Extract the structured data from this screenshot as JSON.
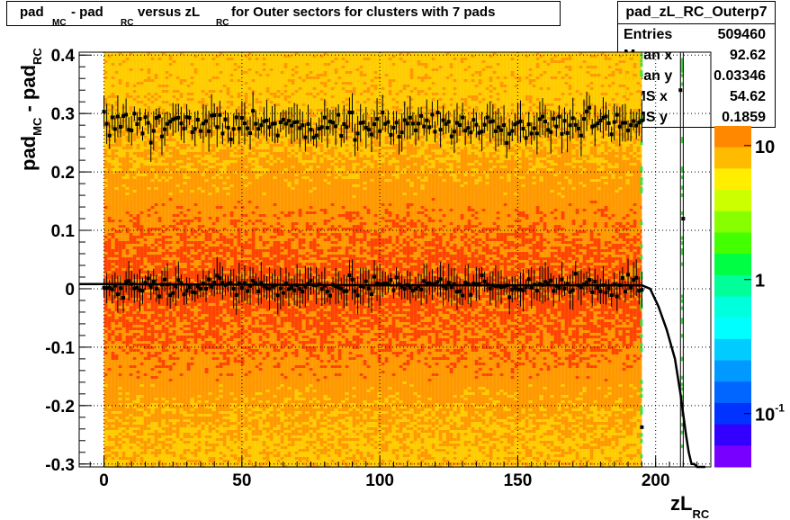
{
  "title": {
    "p1": "pad",
    "p1_sub": "MC",
    "p2": " - pad",
    "p2_sub": "RC",
    "p3": " versus zL",
    "p3_sub": "RC",
    "p4": " for Outer sectors for clusters with 7 pads"
  },
  "stats": {
    "name": "pad_zL_RC_Outerp7",
    "rows": [
      {
        "label": "Entries",
        "value": "509460"
      },
      {
        "label": "Mean x",
        "value": "92.62"
      },
      {
        "label": "Mean y",
        "value": "0.03346"
      },
      {
        "label": "RMS x",
        "value": "54.62"
      },
      {
        "label": "RMS y",
        "value": "0.1859"
      }
    ]
  },
  "colors": {
    "heat_low": "#ffcc00",
    "heat_mid": "#ff9900",
    "heat_high": "#ff4400",
    "markers": "#000000",
    "fit_line": "#000000"
  },
  "chart_data": {
    "type": "heatmap",
    "overlays": [
      "profile-markers",
      "fit-curve"
    ],
    "xlabel": "zL",
    "xlabel_sub": "RC",
    "ylabel": "pad",
    "ylabel_sub1": "MC",
    "ylabel_mid": " - pad",
    "ylabel_sub2": "RC",
    "xlim": [
      -9,
      220
    ],
    "ylim": [
      -0.305,
      0.405
    ],
    "x_ticks": [
      0,
      50,
      100,
      150,
      200
    ],
    "x_tick_labels": [
      "0",
      "50",
      "100",
      "150",
      "200"
    ],
    "y_ticks": [
      -0.3,
      -0.2,
      -0.1,
      0,
      0.1,
      0.2,
      0.3,
      0.4
    ],
    "y_tick_labels": [
      "-0.3",
      "-0.2",
      "-0.1",
      "0",
      "0.1",
      "0.2",
      "0.3",
      "0.4"
    ],
    "grid": true,
    "log_z": true,
    "z_ticks": [
      0.1,
      1,
      10
    ],
    "z_labels": [
      {
        "base": "10",
        "exp": "-1"
      },
      {
        "base": "1",
        "exp": ""
      },
      {
        "base": "10",
        "exp": ""
      }
    ],
    "heatmap_x_range": [
      0,
      195
    ],
    "profile_upper": {
      "x_range": [
        0,
        195
      ],
      "mean": 0.28,
      "spread": 0.02
    },
    "profile_lower": {
      "x_range": [
        0,
        195
      ],
      "mean": 0.005,
      "spread": 0.015
    },
    "fit": {
      "x": [
        -9,
        0,
        50,
        100,
        150,
        190,
        195,
        198,
        201,
        204,
        207,
        209,
        211,
        212,
        213,
        214,
        215,
        216,
        218
      ],
      "y": [
        0.008,
        0.008,
        0.007,
        0.006,
        0.006,
        0.006,
        0.006,
        0.0,
        -0.03,
        -0.07,
        -0.12,
        -0.18,
        -0.25,
        -0.28,
        -0.3,
        -0.3,
        -0.305,
        -0.305,
        -0.305
      ]
    },
    "isolated_markers": [
      {
        "x": 195,
        "y": -0.237
      },
      {
        "x": 209,
        "y": 0.34
      },
      {
        "x": 210,
        "y": 0.12
      }
    ],
    "vertical_lines_x": [
      209,
      210
    ]
  }
}
